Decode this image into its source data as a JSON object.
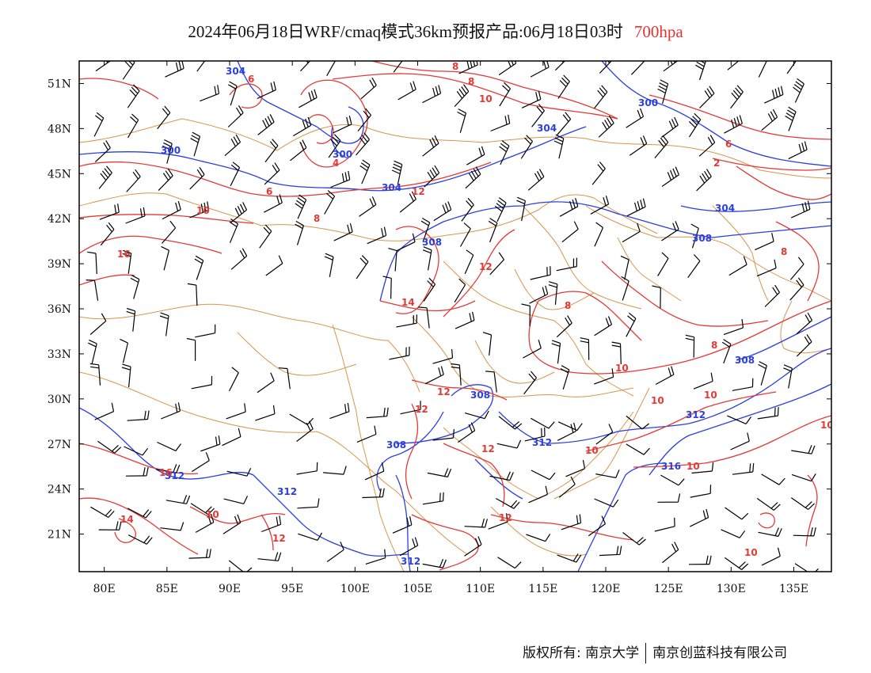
{
  "title": {
    "main": "2024年06月18日WRF/cmaq模式36km预报产品:06月18日03时",
    "level": "700hpa"
  },
  "map": {
    "lat_labels": [
      "51N",
      "48N",
      "45N",
      "42N",
      "39N",
      "36N",
      "33N",
      "30N",
      "27N",
      "24N",
      "21N"
    ],
    "lon_labels": [
      "80E",
      "85E",
      "90E",
      "95E",
      "100E",
      "105E",
      "110E",
      "115E",
      "120E",
      "125E",
      "130E",
      "135E"
    ],
    "lon_range": [
      78,
      138
    ],
    "lat_range": [
      18.5,
      52.5
    ],
    "colors": {
      "geopotential": "#2a3fe0",
      "temperature": "#e33a36",
      "boundary": "#d8964c",
      "wind": "#000000"
    },
    "geopotential_labels": [
      "304",
      "300",
      "304",
      "300",
      "304",
      "304",
      "308",
      "308",
      "308",
      "308",
      "312",
      "312",
      "312",
      "312",
      "316"
    ],
    "temperature_labels": [
      "8",
      "8",
      "6",
      "10",
      "4",
      "6",
      "6",
      "2",
      "8",
      "10",
      "12",
      "16",
      "12",
      "14",
      "8",
      "8",
      "10",
      "12",
      "12",
      "10",
      "10",
      "10",
      "12",
      "16",
      "10",
      "14",
      "12",
      "12",
      "10",
      "10"
    ]
  },
  "footer": {
    "copyright": "版权所有: 南京大学",
    "company": "南京创蓝科技有限公司"
  }
}
